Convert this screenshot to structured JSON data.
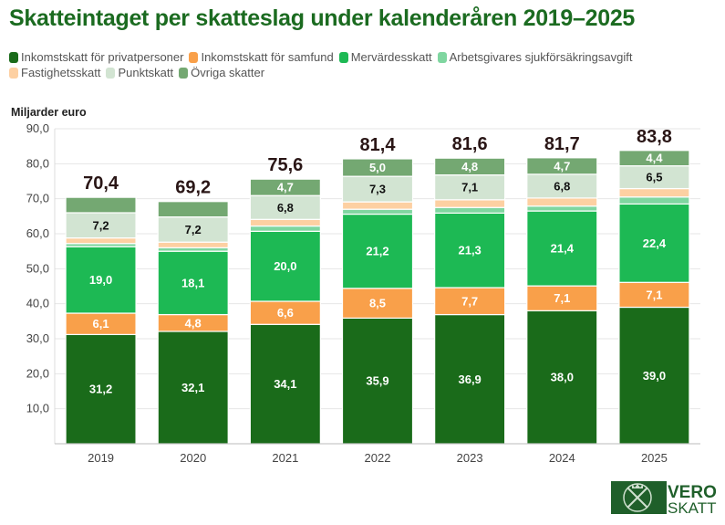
{
  "chart_data": {
    "type": "bar",
    "stacked": true,
    "title": "Skatteintaget per skatteslag under kalenderåren 2019–2025",
    "ylabel": "Miljarder euro",
    "xlabel": "",
    "ylim": [
      0,
      90
    ],
    "yticks": [
      "10,0",
      "20,0",
      "30,0",
      "40,0",
      "50,0",
      "60,0",
      "70,0",
      "80,0",
      "90,0"
    ],
    "grid": true,
    "legend_position": "top",
    "categories": [
      "2019",
      "2020",
      "2021",
      "2022",
      "2023",
      "2024",
      "2025"
    ],
    "totals": [
      "70,4",
      "69,2",
      "75,6",
      "81,4",
      "81,6",
      "81,7",
      "83,8"
    ],
    "series": [
      {
        "name": "Inkomstskatt för privatpersoner",
        "color": "#1a6b1a",
        "text_color": "#ffffff",
        "values": [
          31.2,
          32.1,
          34.1,
          35.9,
          36.9,
          38.0,
          39.0
        ],
        "labels": [
          "31,2",
          "32,1",
          "34,1",
          "35,9",
          "36,9",
          "38,0",
          "39,0"
        ]
      },
      {
        "name": "Inkomstskatt för samfund",
        "color": "#f9a04a",
        "text_color": "#ffffff",
        "values": [
          6.1,
          4.8,
          6.6,
          8.5,
          7.7,
          7.1,
          7.1
        ],
        "labels": [
          "6,1",
          "4,8",
          "6,6",
          "8,5",
          "7,7",
          "7,1",
          "7,1"
        ]
      },
      {
        "name": "Mervärdesskatt",
        "color": "#1db954",
        "text_color": "#ffffff",
        "values": [
          19.0,
          18.1,
          20.0,
          21.2,
          21.3,
          21.4,
          22.4
        ],
        "labels": [
          "19,0",
          "18,1",
          "20,0",
          "21,2",
          "21,3",
          "21,4",
          "22,4"
        ]
      },
      {
        "name": "Arbetsgivares sjukförsäkringsavgift",
        "color": "#7fd6a0",
        "text_color": "#000000",
        "values": [
          0.9,
          1.0,
          1.5,
          1.4,
          1.6,
          1.4,
          2.0
        ],
        "labels": [
          null,
          null,
          null,
          null,
          null,
          null,
          null
        ]
      },
      {
        "name": "Fastighetsskatt",
        "color": "#fdd0a2",
        "text_color": "#000000",
        "values": [
          1.6,
          1.6,
          1.9,
          2.1,
          2.2,
          2.3,
          2.4
        ],
        "labels": [
          null,
          null,
          null,
          null,
          null,
          null,
          null
        ]
      },
      {
        "name": "Punktskatt",
        "color": "#d2e4d2",
        "text_color": "#111111",
        "values": [
          7.2,
          7.2,
          6.8,
          7.3,
          7.1,
          6.8,
          6.5
        ],
        "labels": [
          "7,2",
          "7,2",
          "6,8",
          "7,3",
          "7,1",
          "6,8",
          "6,5"
        ]
      },
      {
        "name": "Övriga skatter",
        "color": "#74a872",
        "text_color": "#ffffff",
        "values": [
          4.4,
          4.4,
          4.7,
          5.0,
          4.8,
          4.7,
          4.4
        ],
        "labels": [
          null,
          null,
          "4,7",
          "5,0",
          "4,8",
          "4,7",
          "4,4"
        ]
      }
    ]
  },
  "logo": {
    "line1": "VERO",
    "line2": "SKATT",
    "color": "#1f5f2a"
  }
}
